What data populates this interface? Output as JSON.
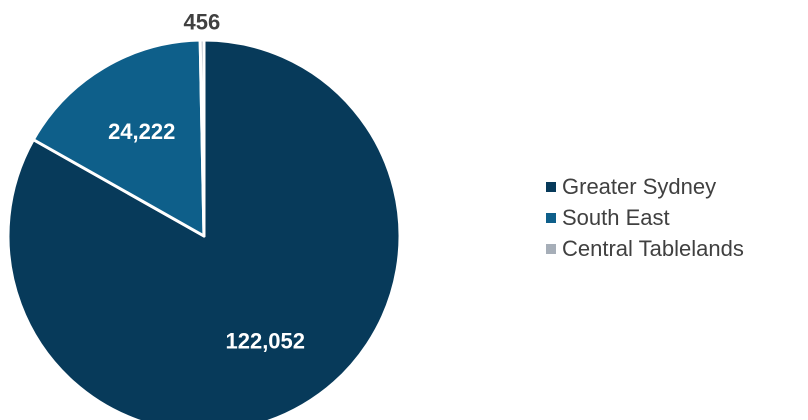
{
  "chart_data": {
    "type": "pie",
    "categories": [
      "Greater Sydney",
      "South East",
      "Central Tablelands"
    ],
    "values": [
      122052,
      24222,
      456
    ],
    "labels": [
      "122,052",
      "24,222",
      "456"
    ],
    "colors": [
      "#073a5a",
      "#0e5f8a",
      "#a6aeb8"
    ],
    "label_colors": [
      "#ffffff",
      "#ffffff",
      "#404040"
    ],
    "start_angle": 0,
    "direction": "clockwise",
    "legend_position": "right"
  }
}
